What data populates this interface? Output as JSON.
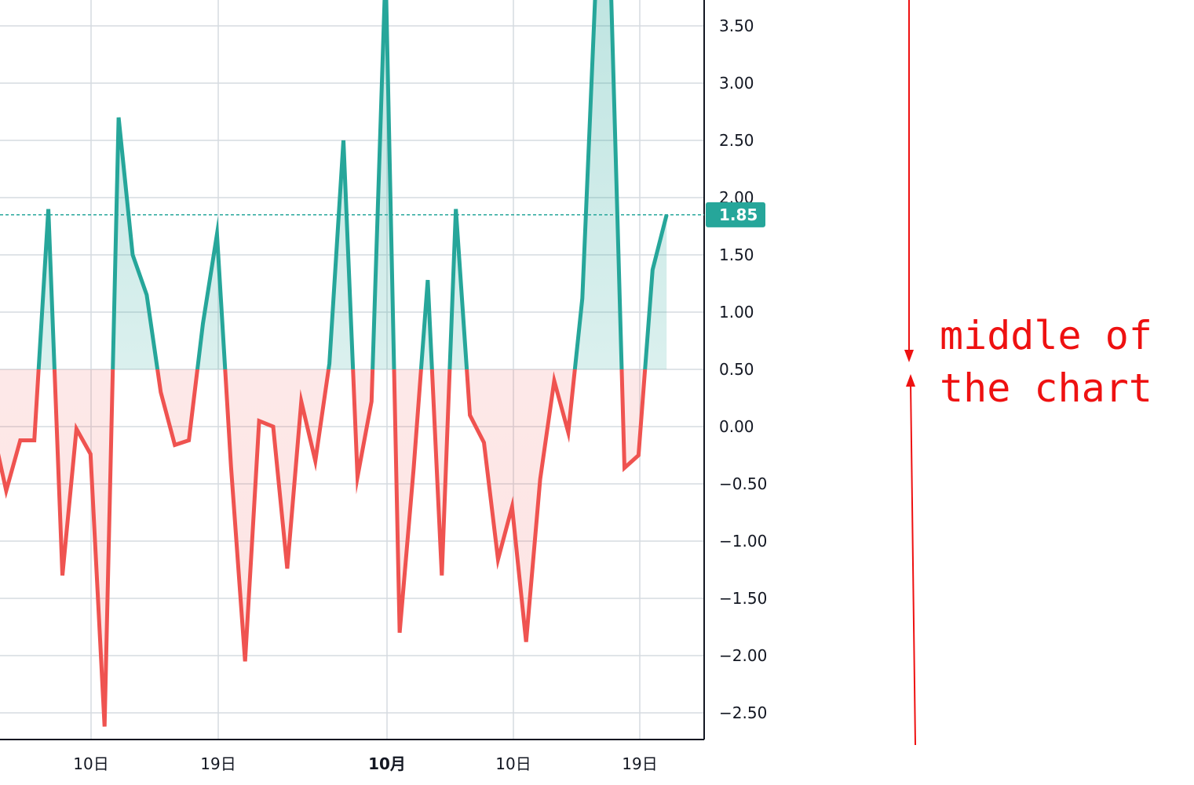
{
  "chart_data": {
    "type": "line",
    "subtype": "baseline",
    "baseline_value": 0.5,
    "x_tick_labels": [
      "10日",
      "19日",
      "10月",
      "10日",
      "19日"
    ],
    "y_tick_labels": [
      "3.50",
      "3.00",
      "2.50",
      "2.00",
      "1.50",
      "1.00",
      "0.50",
      "0.00",
      "−0.50",
      "−1.00",
      "−1.50",
      "−2.00",
      "−2.50"
    ],
    "y_ticks": [
      3.5,
      3.0,
      2.5,
      2.0,
      1.5,
      1.0,
      0.5,
      0.0,
      -0.5,
      -1.0,
      -1.5,
      -2.0,
      -2.5
    ],
    "ylim": [
      -2.75,
      3.72
    ],
    "last_value": 1.85,
    "last_value_label": "1.85",
    "grid": true,
    "series": [
      {
        "values": [
          0.0,
          -0.56,
          -0.12,
          -0.12,
          1.9,
          -1.3,
          -0.02,
          -0.24,
          -2.62,
          2.7,
          1.5,
          1.15,
          0.3,
          -0.16,
          -0.12,
          0.9,
          1.68,
          -0.35,
          -2.05,
          0.05,
          0.0,
          -1.24,
          0.22,
          -0.3,
          0.55,
          2.5,
          -0.44,
          0.22,
          4.0,
          -1.8,
          -0.36,
          1.28,
          -1.3,
          1.9,
          0.1,
          -0.14,
          -1.16,
          -0.7,
          -1.88,
          -0.46,
          0.4,
          -0.05,
          1.12,
          4.0,
          4.0,
          -0.36,
          -0.25,
          1.37,
          1.85
        ]
      }
    ],
    "colors": {
      "above": "#26a69a",
      "below": "#ef5350",
      "above_fill": "#e0f2ef",
      "below_fill": "#fde3e3",
      "grid": "#d6dbe0",
      "axis": "#131722"
    }
  },
  "annotation": {
    "line1": "middle of",
    "line2": "the chart",
    "color": "#ee1111"
  }
}
